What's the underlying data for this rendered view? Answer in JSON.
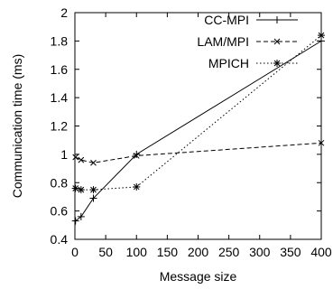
{
  "chart_data": {
    "type": "line",
    "title": "",
    "xlabel": "Message size",
    "ylabel": "Communication time (ms)",
    "xlim": [
      0,
      400
    ],
    "ylim": [
      0.4,
      2
    ],
    "xticks": [
      0,
      50,
      100,
      150,
      200,
      250,
      300,
      350,
      400
    ],
    "yticks": [
      0.4,
      0.6,
      0.8,
      1,
      1.2,
      1.4,
      1.6,
      1.8,
      2
    ],
    "xtick_labels": [
      "0",
      "50",
      "100",
      "150",
      "200",
      "250",
      "300",
      "350",
      "400"
    ],
    "ytick_labels": [
      "0.4",
      "0.6",
      "0.8",
      "1",
      "1.2",
      "1.4",
      "1.6",
      "1.8",
      "2"
    ],
    "grid": false,
    "legend_position": "top-right",
    "series": [
      {
        "name": "CC-MPI",
        "line_style": "solid",
        "marker": "plus",
        "x": [
          1,
          10,
          30,
          100,
          400
        ],
        "y": [
          0.53,
          0.56,
          0.69,
          1.0,
          1.8
        ]
      },
      {
        "name": "LAM/MPI",
        "line_style": "dashed",
        "marker": "cross",
        "x": [
          1,
          10,
          30,
          100,
          400
        ],
        "y": [
          0.98,
          0.96,
          0.94,
          0.99,
          1.08
        ]
      },
      {
        "name": "MPICH",
        "line_style": "dotted",
        "marker": "star",
        "x": [
          1,
          10,
          30,
          100,
          400
        ],
        "y": [
          0.76,
          0.75,
          0.75,
          0.77,
          1.84
        ]
      }
    ]
  }
}
